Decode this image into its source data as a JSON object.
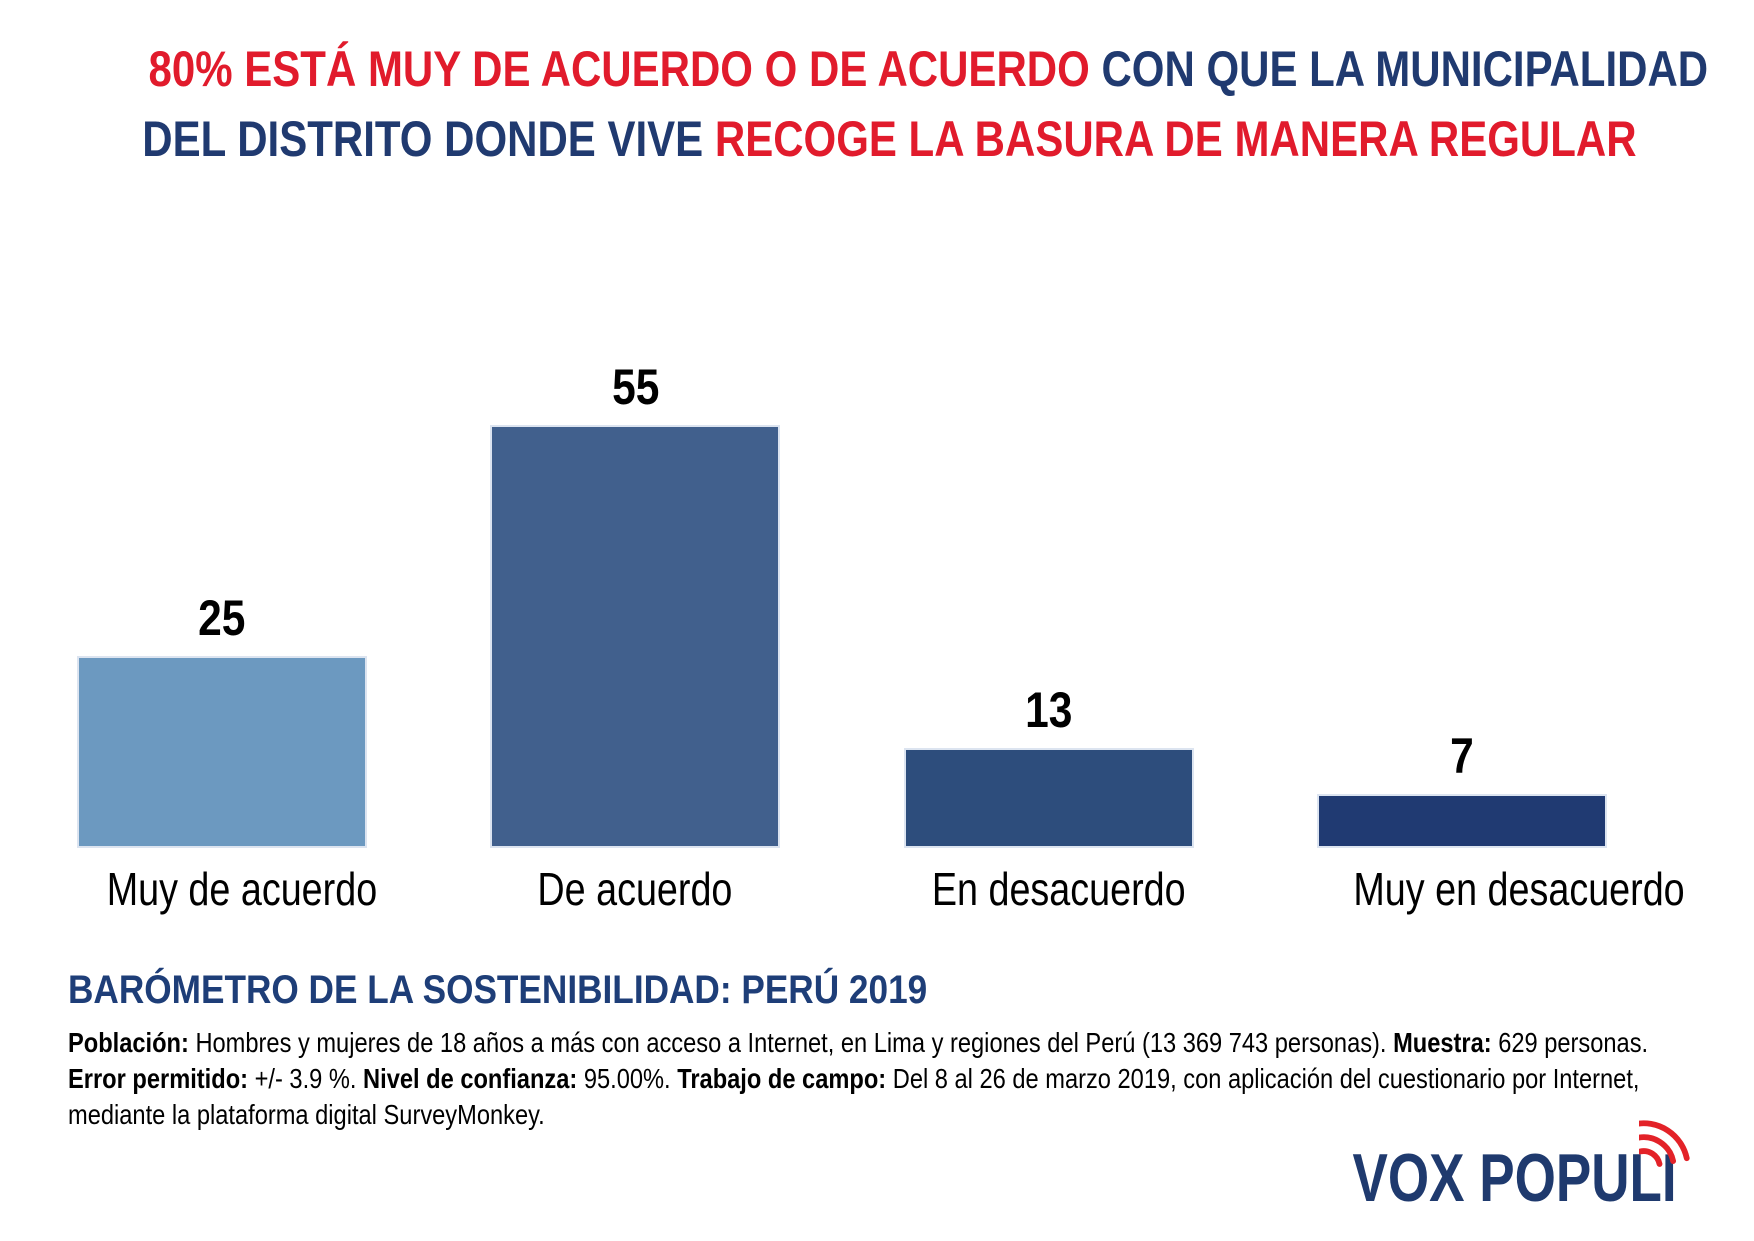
{
  "title": {
    "line1_red": "80% ESTÁ MUY DE ACUERDO O DE ACUERDO",
    "line1_blue": "CON QUE LA MUNICIPALIDAD",
    "line2_blue": "DEL DISTRITO DONDE VIVE",
    "line2_red": "RECOGE LA BASURA DE MANERA REGULAR"
  },
  "chart_data": {
    "type": "bar",
    "title": "",
    "categories": [
      "Muy de acuerdo",
      "De acuerdo",
      "En desacuerdo",
      "Muy en desacuerdo"
    ],
    "values": [
      25,
      55,
      13,
      7
    ],
    "value_labels": [
      "25",
      "55",
      "13",
      "7"
    ],
    "bar_colors": [
      "#6C99C0",
      "#41608D",
      "#2D4D7C",
      "#203A72"
    ],
    "value_label_color": "#000000",
    "xlabel": "",
    "ylabel": "",
    "ylim": [
      0,
      60
    ],
    "grid": false,
    "legend": false,
    "value_label_position": "above-bar"
  },
  "footer": {
    "heading": "BARÓMETRO DE LA SOSTENIBILIDAD: PERÚ 2019",
    "lines": [
      [
        {
          "b": "Población:"
        },
        {
          "t": " Hombres y mujeres de 18 años a más con acceso a Internet, en Lima y regiones del Perú (13 369 743 personas). "
        },
        {
          "b": "Muestra:"
        },
        {
          "t": " 629 personas."
        }
      ],
      [
        {
          "b": "Error permitido:"
        },
        {
          "t": " +/- 3.9 %. "
        },
        {
          "b": "Nivel de confianza:"
        },
        {
          "t": " 95.00%. "
        },
        {
          "b": "Trabajo de campo:"
        },
        {
          "t": " Del 8 al 26 de marzo 2019, con aplicación del cuestionario por Internet,"
        }
      ],
      [
        {
          "t": "mediante la plataforma digital SurveyMonkey."
        }
      ]
    ]
  },
  "logo": {
    "text": "VOX POPULI",
    "waves_icon": "radio-waves-icon"
  },
  "colors": {
    "title_red": "#E11B2C",
    "title_blue": "#203A70",
    "heading_blue": "#1E3E78",
    "text_black": "#000000",
    "logo_blue": "#1F3A6E",
    "logo_wave_red": "#E32228",
    "bar_border": "#DCE4F0",
    "background": "#FFFFFF"
  }
}
